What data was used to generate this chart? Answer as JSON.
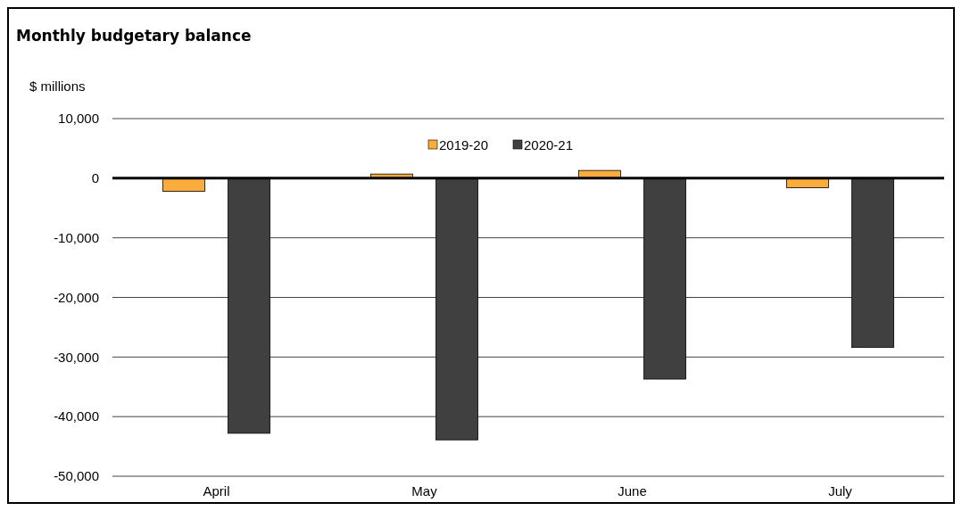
{
  "chart_data": {
    "type": "bar",
    "title": "Monthly budgetary balance",
    "ylabel": "$ millions",
    "categories": [
      "April",
      "May",
      "June",
      "July"
    ],
    "series": [
      {
        "name": "2019-20",
        "color": "#fbac3c",
        "values": [
          -2200,
          700,
          1300,
          -1600
        ]
      },
      {
        "name": "2020-21",
        "color": "#404040",
        "values": [
          -42800,
          -43900,
          -33700,
          -28400
        ]
      }
    ],
    "ylim": [
      -50000,
      10000
    ],
    "yticks": [
      {
        "value": 10000,
        "label": "10,000"
      },
      0,
      {
        "value": -10000,
        "label": "-10,000"
      },
      {
        "value": -20000,
        "label": "-20,000"
      },
      {
        "value": -30000,
        "label": "-30,000"
      },
      {
        "value": -40000,
        "label": "-40,000"
      },
      {
        "value": -50000,
        "label": "-50,000"
      }
    ],
    "grid": "y",
    "legend": "top"
  }
}
